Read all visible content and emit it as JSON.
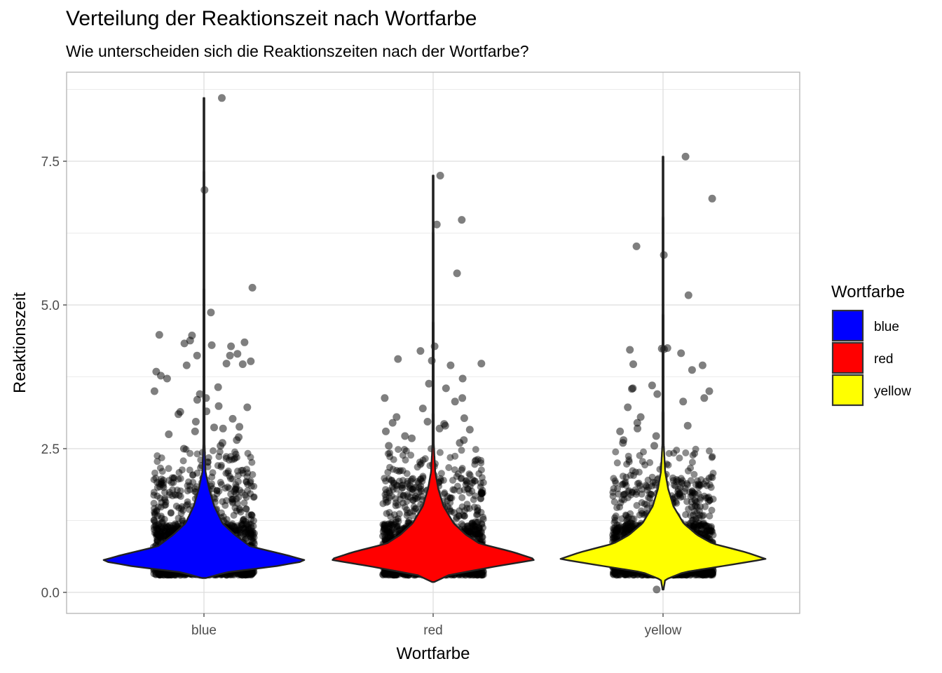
{
  "chart_data": {
    "type": "violin",
    "title": "Verteilung der Reaktionszeit nach Wortfarbe",
    "subtitle": "Wie unterscheiden sich die Reaktionszeiten nach der Wortfarbe?",
    "xlabel": "Wortfarbe",
    "ylabel": "Reaktionszeit",
    "categories": [
      "blue",
      "red",
      "yellow"
    ],
    "ylim": [
      -0.35,
      9.05
    ],
    "yticks": [
      0.0,
      2.5,
      5.0,
      7.5
    ],
    "ytick_labels": [
      "0.0",
      "2.5",
      "5.0",
      "7.5"
    ],
    "grid": true,
    "legend": {
      "title": "Wortfarbe",
      "position": "right",
      "entries": [
        {
          "label": "blue",
          "color": "#0000FF"
        },
        {
          "label": "red",
          "color": "#FF0000"
        },
        {
          "label": "yellow",
          "color": "#FFFF00"
        }
      ]
    },
    "series": [
      {
        "category": "blue",
        "color": "#0000FF",
        "violin": {
          "min": 0.25,
          "max": 8.6,
          "mode": 0.55,
          "profile": [
            [
              0.25,
              0.02
            ],
            [
              0.35,
              0.22
            ],
            [
              0.45,
              0.68
            ],
            [
              0.55,
              1.0
            ],
            [
              0.65,
              0.8
            ],
            [
              0.8,
              0.45
            ],
            [
              1.0,
              0.3
            ],
            [
              1.2,
              0.18
            ],
            [
              1.5,
              0.1
            ],
            [
              1.8,
              0.05
            ],
            [
              2.1,
              0.015
            ],
            [
              2.6,
              0.006
            ],
            [
              8.6,
              0.004
            ]
          ]
        },
        "outliers": [
          8.6,
          7.0,
          5.3,
          4.87,
          4.48,
          4.47,
          4.38,
          4.35,
          4.33,
          4.3,
          4.28,
          4.15,
          4.12,
          4.12,
          4.02,
          3.98,
          3.97,
          3.95,
          3.84,
          3.77,
          3.72,
          3.57,
          3.5,
          3.45,
          3.38,
          3.35,
          3.24,
          3.22,
          3.15,
          3.14,
          3.1,
          3.02,
          2.97,
          2.88,
          2.87,
          2.85,
          2.8,
          2.75,
          2.7,
          2.65,
          2.6,
          2.55,
          2.5
        ]
      },
      {
        "category": "red",
        "color": "#FF0000",
        "violin": {
          "min": 0.18,
          "max": 7.25,
          "mode": 0.57,
          "profile": [
            [
              0.18,
              0.01
            ],
            [
              0.3,
              0.15
            ],
            [
              0.45,
              0.6
            ],
            [
              0.57,
              1.0
            ],
            [
              0.7,
              0.78
            ],
            [
              0.85,
              0.45
            ],
            [
              1.0,
              0.32
            ],
            [
              1.2,
              0.2
            ],
            [
              1.5,
              0.1
            ],
            [
              1.8,
              0.05
            ],
            [
              2.1,
              0.02
            ],
            [
              2.6,
              0.006
            ],
            [
              7.25,
              0.004
            ]
          ]
        },
        "outliers": [
          7.25,
          6.48,
          6.4,
          5.55,
          4.28,
          4.2,
          4.06,
          4.03,
          3.98,
          3.95,
          3.72,
          3.63,
          3.55,
          3.38,
          3.38,
          3.32,
          3.2,
          3.05,
          3.03,
          2.97,
          2.95,
          2.93,
          2.9,
          2.85,
          2.83,
          2.8,
          2.72,
          2.68,
          2.65,
          2.6,
          2.55
        ]
      },
      {
        "category": "yellow",
        "color": "#FFFF00",
        "violin": {
          "min": 0.05,
          "max": 7.58,
          "mode": 0.58,
          "profile": [
            [
              0.05,
              0.005
            ],
            [
              0.22,
              0.02
            ],
            [
              0.35,
              0.2
            ],
            [
              0.47,
              0.62
            ],
            [
              0.58,
              1.0
            ],
            [
              0.7,
              0.8
            ],
            [
              0.85,
              0.48
            ],
            [
              1.0,
              0.33
            ],
            [
              1.2,
              0.2
            ],
            [
              1.5,
              0.1
            ],
            [
              1.8,
              0.05
            ],
            [
              2.1,
              0.02
            ],
            [
              2.6,
              0.006
            ],
            [
              7.58,
              0.004
            ]
          ]
        },
        "outliers": [
          7.58,
          6.85,
          6.02,
          5.87,
          5.17,
          4.25,
          4.24,
          4.23,
          4.22,
          4.16,
          3.97,
          3.95,
          3.87,
          3.6,
          3.55,
          3.54,
          3.5,
          3.45,
          3.38,
          3.32,
          3.22,
          3.05,
          2.95,
          2.9,
          2.85,
          2.8,
          2.72,
          2.65,
          2.6,
          2.55,
          0.05
        ]
      }
    ]
  }
}
